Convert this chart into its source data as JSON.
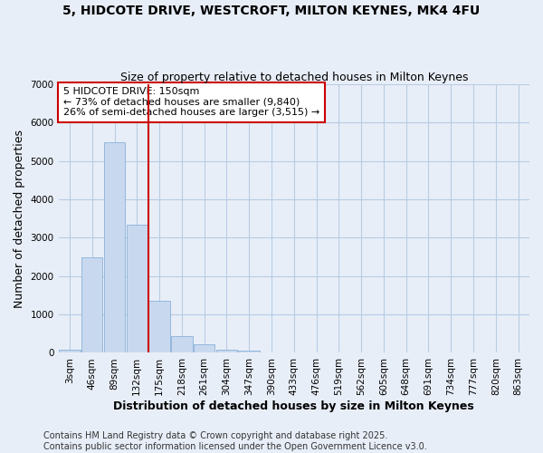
{
  "title_line1": "5, HIDCOTE DRIVE, WESTCROFT, MILTON KEYNES, MK4 4FU",
  "title_line2": "Size of property relative to detached houses in Milton Keynes",
  "xlabel": "Distribution of detached houses by size in Milton Keynes",
  "ylabel": "Number of detached properties",
  "categories": [
    "3sqm",
    "46sqm",
    "89sqm",
    "132sqm",
    "175sqm",
    "218sqm",
    "261sqm",
    "304sqm",
    "347sqm",
    "390sqm",
    "433sqm",
    "476sqm",
    "519sqm",
    "562sqm",
    "605sqm",
    "648sqm",
    "691sqm",
    "734sqm",
    "777sqm",
    "820sqm",
    "863sqm"
  ],
  "values": [
    80,
    2500,
    5500,
    3350,
    1350,
    425,
    220,
    90,
    50,
    5,
    0,
    0,
    0,
    0,
    0,
    0,
    0,
    0,
    0,
    0,
    0
  ],
  "bar_color": "#c8d9ef",
  "bar_edge_color": "#8ab0d8",
  "grid_color": "#b8cce4",
  "background_color": "#e8eef8",
  "vline_color": "#cc0000",
  "vline_x": 3.5,
  "annotation_text": "5 HIDCOTE DRIVE: 150sqm\n← 73% of detached houses are smaller (9,840)\n26% of semi-detached houses are larger (3,515) →",
  "annotation_box_color": "#ffffff",
  "annotation_box_edge_color": "#cc0000",
  "ylim": [
    0,
    7000
  ],
  "yticks": [
    0,
    1000,
    2000,
    3000,
    4000,
    5000,
    6000,
    7000
  ],
  "footer_line1": "Contains HM Land Registry data © Crown copyright and database right 2025.",
  "footer_line2": "Contains public sector information licensed under the Open Government Licence v3.0.",
  "title_fontsize": 10,
  "subtitle_fontsize": 9,
  "axis_label_fontsize": 9,
  "tick_fontsize": 7.5,
  "annotation_fontsize": 8,
  "footer_fontsize": 7
}
